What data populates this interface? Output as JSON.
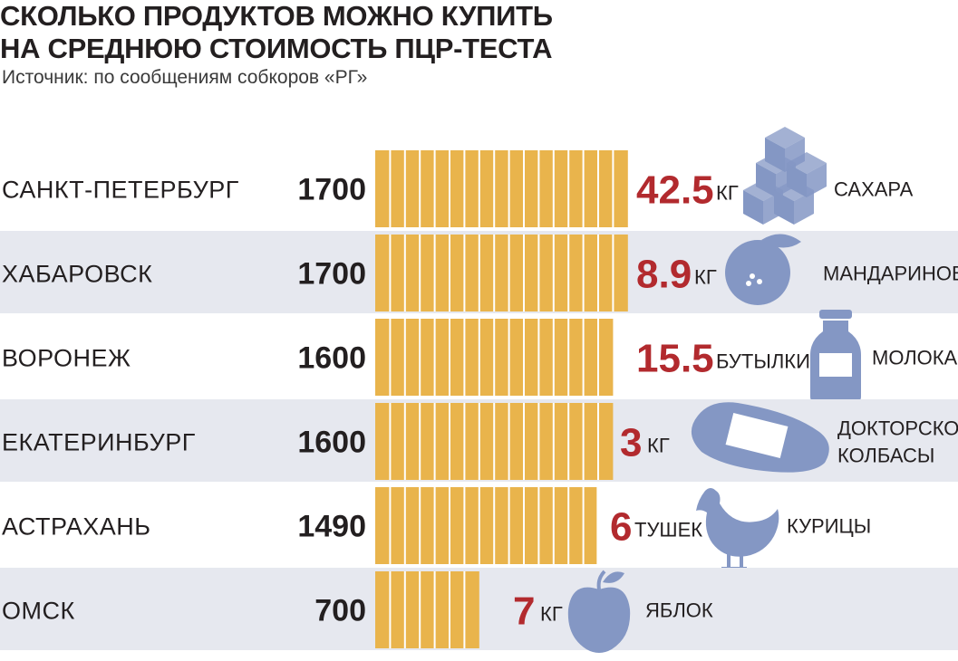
{
  "header": {
    "title_line1": "СКОЛЬКО ПРОДУКТОВ МОЖНО КУПИТЬ",
    "title_line2": "НА СРЕДНЮЮ СТОИМОСТЬ ПЦР-ТЕСТА",
    "source": "Источник: по сообщениям собкоров «РГ»"
  },
  "colors": {
    "bar": "#e9b44c",
    "stripe": "#e6e8ef",
    "quantity": "#b22a2e",
    "icon": "#8497c4"
  },
  "chart_data": {
    "type": "bar",
    "orientation": "horizontal",
    "title": "СКОЛЬКО ПРОДУКТОВ МОЖНО КУПИТЬ НА СРЕДНЮЮ СТОИМОСТЬ ПЦР-ТЕСТА",
    "categories": [
      "САНКТ-ПЕТЕРБУРГ",
      "ХАБАРОВСК",
      "ВОРОНЕЖ",
      "ЕКАТЕРИНБУРГ",
      "АСТРАХАНЬ",
      "ОМСК"
    ],
    "values": [
      1700,
      1700,
      1600,
      1600,
      1490,
      700
    ],
    "value_labels": [
      "1700",
      "1700",
      "1600",
      "1600",
      "1490",
      "700"
    ],
    "grid": false,
    "annotations": [
      {
        "quantity": "42.5",
        "unit": "КГ",
        "product": [
          "САХАРА"
        ],
        "icon": "sugar-cubes-icon"
      },
      {
        "quantity": "8.9",
        "unit": "КГ",
        "product": [
          "МАНДАРИНОВ"
        ],
        "icon": "tangerine-icon"
      },
      {
        "quantity": "15.5",
        "unit": "БУТЫЛКИ",
        "product": [
          "МОЛОКА"
        ],
        "icon": "milk-bottle-icon"
      },
      {
        "quantity": "3",
        "unit": "КГ",
        "product": [
          "ДОКТОРСКОЙ",
          "КОЛБАСЫ"
        ],
        "icon": "sausage-icon"
      },
      {
        "quantity": "6",
        "unit": "ТУШЕК",
        "product": [
          "КУРИЦЫ"
        ],
        "icon": "chicken-icon"
      },
      {
        "quantity": "7",
        "unit": "КГ",
        "product": [
          "ЯБЛОК"
        ],
        "icon": "apple-icon"
      }
    ]
  }
}
